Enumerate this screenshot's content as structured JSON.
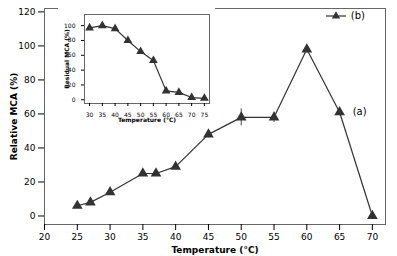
{
  "chart_data": [
    {
      "type": "line",
      "x": [
        25,
        27,
        30,
        35,
        37,
        40,
        45,
        50,
        55,
        60,
        65,
        70
      ],
      "series": [
        {
          "values": [
            6,
            8,
            14,
            25,
            25,
            29,
            48,
            58,
            58,
            98,
            61,
            0
          ],
          "errors": [
            0,
            0,
            0,
            1,
            1,
            1,
            2,
            5,
            3,
            2,
            2,
            0
          ],
          "color": "#333333",
          "marker": "triangle"
        }
      ],
      "xlabel": "Temperature (°C)",
      "ylabel": "Relative MCA (%)",
      "xlim": [
        20,
        72
      ],
      "ylim": [
        -5,
        122
      ],
      "xticks": [
        20,
        25,
        30,
        35,
        40,
        45,
        50,
        55,
        60,
        65,
        70
      ],
      "yticks": [
        0,
        20,
        40,
        60,
        80,
        100,
        120
      ],
      "annotations": [
        {
          "text": "(a)",
          "x": 67,
          "y": 61
        }
      ]
    },
    {
      "type": "line",
      "x": [
        30,
        35,
        40,
        45,
        50,
        55,
        60,
        65,
        70,
        75
      ],
      "series": [
        {
          "name": "(b)",
          "values": [
            97,
            100,
            96,
            80,
            65,
            53,
            12,
            10,
            3,
            2
          ],
          "errors": [
            0,
            0,
            0,
            0,
            0,
            0,
            0,
            0,
            1,
            1
          ],
          "color": "#333333",
          "marker": "triangle"
        }
      ],
      "xlabel": "Temperature (°C)",
      "ylabel": "Residual MCA (%)",
      "xlim": [
        28,
        77
      ],
      "ylim": [
        -5,
        115
      ],
      "xticks": [
        30,
        35,
        40,
        45,
        50,
        55,
        60,
        65,
        70,
        75
      ],
      "yticks": [
        0,
        20,
        40,
        60,
        80,
        100
      ],
      "legend": "upper right"
    }
  ]
}
